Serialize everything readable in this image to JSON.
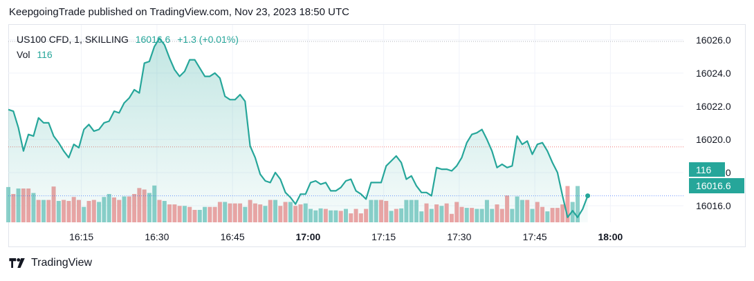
{
  "header": {
    "text": "KeepgoingTrade published on TradingView.com, Nov 23, 2023 18:50 UTC"
  },
  "legend": {
    "symbol": "US100 CFD, 1, SKILLING",
    "price": "16016.6",
    "change": "+1.3 (+0.01%)",
    "vol_label": "Vol",
    "vol_value": "116"
  },
  "footer": {
    "brand": "TradingView",
    "logo_icon": "tradingview-logo-icon"
  },
  "tags": {
    "volume": "116",
    "price": "16016.6"
  },
  "colors": {
    "up": "#26a69a",
    "down": "#ef9a9a",
    "up_vol": "#80cbc4",
    "tag": "#26a69a"
  },
  "chart_data": {
    "type": "area",
    "title": "",
    "y_ticks": [
      16016.0,
      16018.0,
      16020.0,
      16022.0,
      16024.0,
      16026.0
    ],
    "ylim": [
      16015.0,
      16026.7
    ],
    "x_ticks": [
      {
        "label": "16:15",
        "t": 14.5,
        "bold": false
      },
      {
        "label": "16:30",
        "t": 29.5,
        "bold": false
      },
      {
        "label": "16:45",
        "t": 44.5,
        "bold": false
      },
      {
        "label": "17:00",
        "t": 59.5,
        "bold": true
      },
      {
        "label": "17:15",
        "t": 74.5,
        "bold": false
      },
      {
        "label": "17:30",
        "t": 89.5,
        "bold": false
      },
      {
        "label": "17:45",
        "t": 104.5,
        "bold": false
      },
      {
        "label": "18:00",
        "t": 119.5,
        "bold": true
      }
    ],
    "xlim": [
      0,
      134
    ],
    "reference_line": 16019.55,
    "last_price": 16016.6,
    "price_series": [
      16021.8,
      16021.7,
      16020.7,
      16019.3,
      16020.3,
      16020.2,
      16021.3,
      16021.0,
      16021.0,
      16020.2,
      16019.8,
      16019.3,
      16018.9,
      16019.7,
      16019.5,
      16020.6,
      16020.9,
      16020.5,
      16020.6,
      16021.0,
      16021.1,
      16021.7,
      16021.6,
      16022.2,
      16022.5,
      16023.0,
      16022.8,
      16024.6,
      16024.7,
      16025.6,
      16026.1,
      16025.7,
      16024.9,
      16024.2,
      16023.8,
      16024.1,
      16024.8,
      16024.8,
      16024.3,
      16023.8,
      16023.8,
      16024.0,
      16023.7,
      16022.6,
      16022.4,
      16022.4,
      16022.7,
      16022.3,
      16019.6,
      16018.9,
      16017.9,
      16017.5,
      16017.4,
      16018.0,
      16017.6,
      16016.8,
      16016.5,
      16016.1,
      16016.7,
      16016.7,
      16017.4,
      16017.5,
      16017.3,
      16017.4,
      16016.9,
      16016.9,
      16017.1,
      16017.5,
      16017.6,
      16016.9,
      16016.7,
      16016.4,
      16017.4,
      16017.4,
      16017.4,
      16018.4,
      16018.7,
      16019.0,
      16018.6,
      16017.6,
      16017.8,
      16017.2,
      16016.8,
      16016.8,
      16016.6,
      16018.3,
      16018.2,
      16018.2,
      16018.1,
      16018.4,
      16018.9,
      16019.8,
      16020.3,
      16020.4,
      16020.6,
      16020.0,
      16019.3,
      16018.3,
      16018.5,
      16018.3,
      16018.4,
      16020.2,
      16019.7,
      16019.9,
      16019.1,
      16019.7,
      16019.8,
      16019.3,
      16018.6,
      16018.0,
      16016.6,
      16015.3,
      16015.7,
      16015.3,
      16015.8,
      16016.6
    ],
    "volume_max": 100,
    "volume_series": [
      {
        "v": 71,
        "up": true
      },
      {
        "v": 57,
        "up": false
      },
      {
        "v": 68,
        "up": true
      },
      {
        "v": 68,
        "up": false
      },
      {
        "v": 68,
        "up": false
      },
      {
        "v": 59,
        "up": true
      },
      {
        "v": 45,
        "up": false
      },
      {
        "v": 45,
        "up": true
      },
      {
        "v": 45,
        "up": false
      },
      {
        "v": 72,
        "up": false
      },
      {
        "v": 43,
        "up": true
      },
      {
        "v": 45,
        "up": false
      },
      {
        "v": 43,
        "up": false
      },
      {
        "v": 51,
        "up": false
      },
      {
        "v": 45,
        "up": false
      },
      {
        "v": 31,
        "up": true
      },
      {
        "v": 43,
        "up": false
      },
      {
        "v": 45,
        "up": false
      },
      {
        "v": 41,
        "up": true
      },
      {
        "v": 51,
        "up": true
      },
      {
        "v": 57,
        "up": true
      },
      {
        "v": 50,
        "up": false
      },
      {
        "v": 45,
        "up": false
      },
      {
        "v": 52,
        "up": true
      },
      {
        "v": 52,
        "up": false
      },
      {
        "v": 57,
        "up": false
      },
      {
        "v": 69,
        "up": false
      },
      {
        "v": 66,
        "up": false
      },
      {
        "v": 59,
        "up": true
      },
      {
        "v": 74,
        "up": true
      },
      {
        "v": 45,
        "up": false
      },
      {
        "v": 43,
        "up": true
      },
      {
        "v": 36,
        "up": false
      },
      {
        "v": 36,
        "up": false
      },
      {
        "v": 33,
        "up": false
      },
      {
        "v": 33,
        "up": true
      },
      {
        "v": 31,
        "up": false
      },
      {
        "v": 25,
        "up": false
      },
      {
        "v": 25,
        "up": true
      },
      {
        "v": 31,
        "up": true
      },
      {
        "v": 31,
        "up": false
      },
      {
        "v": 31,
        "up": false
      },
      {
        "v": 41,
        "up": false
      },
      {
        "v": 41,
        "up": true
      },
      {
        "v": 38,
        "up": false
      },
      {
        "v": 38,
        "up": false
      },
      {
        "v": 38,
        "up": false
      },
      {
        "v": 31,
        "up": true
      },
      {
        "v": 45,
        "up": false
      },
      {
        "v": 38,
        "up": false
      },
      {
        "v": 36,
        "up": false
      },
      {
        "v": 33,
        "up": true
      },
      {
        "v": 45,
        "up": false
      },
      {
        "v": 45,
        "up": true
      },
      {
        "v": 33,
        "up": false
      },
      {
        "v": 41,
        "up": false
      },
      {
        "v": 41,
        "up": true
      },
      {
        "v": 33,
        "up": false
      },
      {
        "v": 36,
        "up": false
      },
      {
        "v": 38,
        "up": true
      },
      {
        "v": 27,
        "up": true
      },
      {
        "v": 24,
        "up": true
      },
      {
        "v": 28,
        "up": true
      },
      {
        "v": 27,
        "up": false
      },
      {
        "v": 24,
        "up": true
      },
      {
        "v": 24,
        "up": true
      },
      {
        "v": 23,
        "up": false
      },
      {
        "v": 27,
        "up": true
      },
      {
        "v": 18,
        "up": false
      },
      {
        "v": 27,
        "up": false
      },
      {
        "v": 18,
        "up": false
      },
      {
        "v": 27,
        "up": false
      },
      {
        "v": 45,
        "up": true
      },
      {
        "v": 45,
        "up": true
      },
      {
        "v": 45,
        "up": false
      },
      {
        "v": 43,
        "up": false
      },
      {
        "v": 23,
        "up": true
      },
      {
        "v": 27,
        "up": false
      },
      {
        "v": 28,
        "up": true
      },
      {
        "v": 45,
        "up": true
      },
      {
        "v": 45,
        "up": true
      },
      {
        "v": 45,
        "up": true
      },
      {
        "v": 22,
        "up": true
      },
      {
        "v": 38,
        "up": false
      },
      {
        "v": 27,
        "up": true
      },
      {
        "v": 36,
        "up": false
      },
      {
        "v": 33,
        "up": true
      },
      {
        "v": 38,
        "up": false
      },
      {
        "v": 17,
        "up": false
      },
      {
        "v": 41,
        "up": false
      },
      {
        "v": 31,
        "up": false
      },
      {
        "v": 29,
        "up": true
      },
      {
        "v": 29,
        "up": false
      },
      {
        "v": 27,
        "up": true
      },
      {
        "v": 27,
        "up": true
      },
      {
        "v": 45,
        "up": true
      },
      {
        "v": 27,
        "up": true
      },
      {
        "v": 36,
        "up": false
      },
      {
        "v": 27,
        "up": false
      },
      {
        "v": 54,
        "up": false
      },
      {
        "v": 27,
        "up": true
      },
      {
        "v": 52,
        "up": true
      },
      {
        "v": 45,
        "up": true
      },
      {
        "v": 45,
        "up": false
      },
      {
        "v": 27,
        "up": true
      },
      {
        "v": 41,
        "up": false
      },
      {
        "v": 31,
        "up": false
      },
      {
        "v": 22,
        "up": true
      },
      {
        "v": 29,
        "up": false
      },
      {
        "v": 29,
        "up": false
      },
      {
        "v": 36,
        "up": false
      },
      {
        "v": 73,
        "up": false
      },
      {
        "v": 41,
        "up": true
      },
      {
        "v": 73,
        "up": true
      }
    ]
  }
}
